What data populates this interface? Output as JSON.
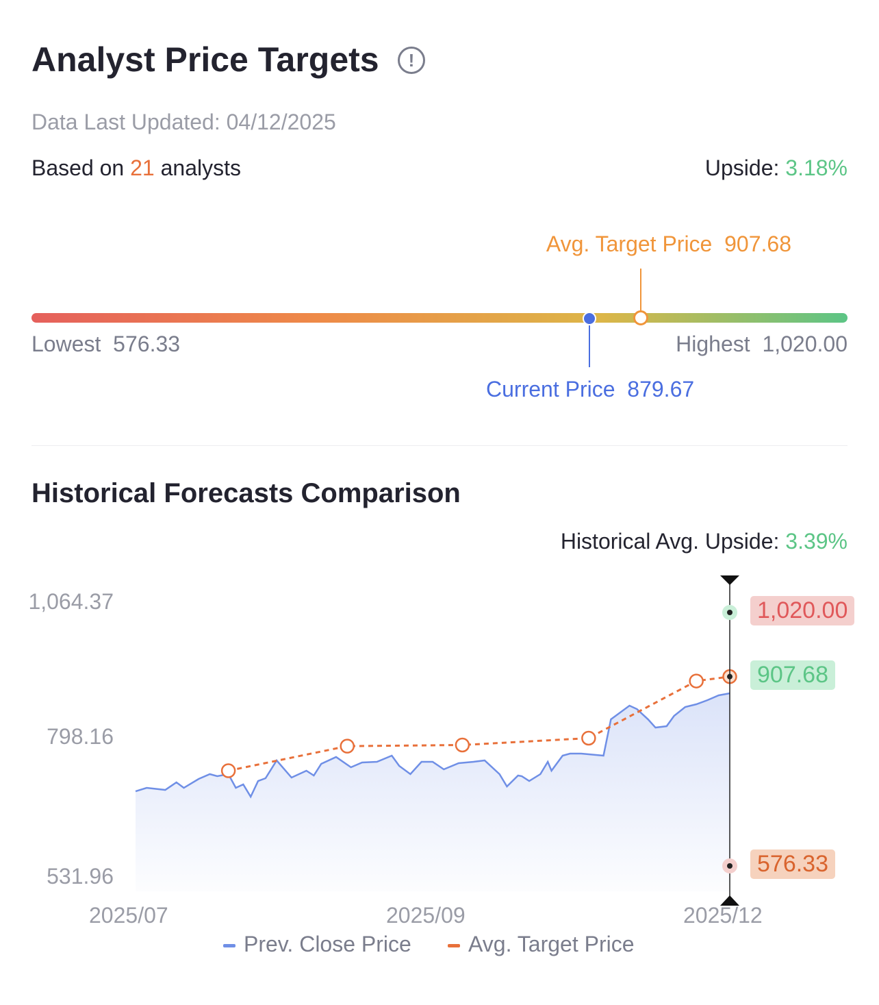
{
  "header": {
    "title": "Analyst Price Targets",
    "info_icon": "info-circle-icon",
    "updated": "Data Last Updated: 04/12/2025",
    "based_prefix": "Based on ",
    "analysts": "21",
    "based_suffix": " analysts",
    "upside_label": "Upside: ",
    "upside_value": "3.18%"
  },
  "range": {
    "lowest_label": "Lowest",
    "lowest": "576.33",
    "highest_label": "Highest",
    "highest": "1,020.00",
    "current_label": "Current Price",
    "current": "879.67",
    "avg_label": "Avg. Target Price",
    "avg": "907.68",
    "low_num": 576.33,
    "high_num": 1020.0,
    "current_num": 879.67,
    "avg_num": 907.68
  },
  "section": {
    "title": "Historical Forecasts Comparison",
    "hist_label": "Historical Avg. Upside: ",
    "hist_value": "3.39%"
  },
  "colors": {
    "price": "#6f8fe6",
    "avg": "#e8703a",
    "green": "#5cc586",
    "red": "#e5605c"
  },
  "chart_data": {
    "type": "line",
    "title": "Historical Forecasts Comparison",
    "ylim": [
      531.96,
      1064.37
    ],
    "y_ticks": [
      "1,064.37",
      "798.16",
      "531.96"
    ],
    "x_ticks": [
      {
        "t": 0,
        "label": "2025/07"
      },
      {
        "t": 80,
        "label": "2025/09"
      },
      {
        "t": 160,
        "label": "2025/12"
      }
    ],
    "xlim": [
      0,
      160
    ],
    "legend": [
      "Prev. Close Price",
      "Avg. Target Price"
    ],
    "series": [
      {
        "name": "Prev. Close Price",
        "t": [
          0,
          3,
          8,
          11,
          13,
          17,
          20,
          22,
          25,
          27,
          29,
          31,
          33,
          35,
          38,
          42,
          46,
          48,
          50,
          54,
          58,
          61,
          65,
          69,
          71,
          74,
          77,
          80,
          83,
          87,
          91,
          94,
          98,
          100,
          103,
          104,
          106,
          109,
          111,
          112,
          115,
          117,
          120,
          126,
          128,
          130,
          133,
          135,
          138,
          140,
          143,
          145,
          148,
          151,
          154,
          157,
          160
        ],
        "values": [
          707.0,
          713.0,
          709.4,
          722.6,
          713.0,
          728.6,
          737.0,
          733.4,
          737.0,
          713.0,
          719.0,
          697.4,
          725.0,
          729.8,
          761.0,
          731.0,
          743.0,
          734.6,
          755.0,
          767.0,
          749.0,
          757.4,
          758.6,
          769.4,
          751.4,
          737.0,
          758.6,
          758.6,
          745.4,
          756.2,
          758.6,
          761.0,
          737.0,
          715.4,
          734.6,
          733.4,
          725.0,
          737.0,
          758.6,
          743.0,
          769.4,
          773.0,
          773.0,
          769.4,
          832.9,
          842.5,
          856.9,
          850.9,
          832.9,
          818.5,
          820.9,
          838.9,
          854.5,
          859.3,
          866.5,
          874.9,
          878.5
        ]
      },
      {
        "name": "Avg. Target Price",
        "t": [
          25,
          57,
          88,
          122,
          151,
          160
        ],
        "values": [
          743,
          786,
          788,
          800,
          900,
          907.68
        ]
      }
    ],
    "annotations": [
      {
        "label": "1,020.00",
        "value": 1020.0,
        "kind": "highest"
      },
      {
        "label": "907.68",
        "value": 907.68,
        "kind": "average"
      },
      {
        "label": "576.33",
        "value": 576.33,
        "kind": "lowest"
      }
    ]
  }
}
